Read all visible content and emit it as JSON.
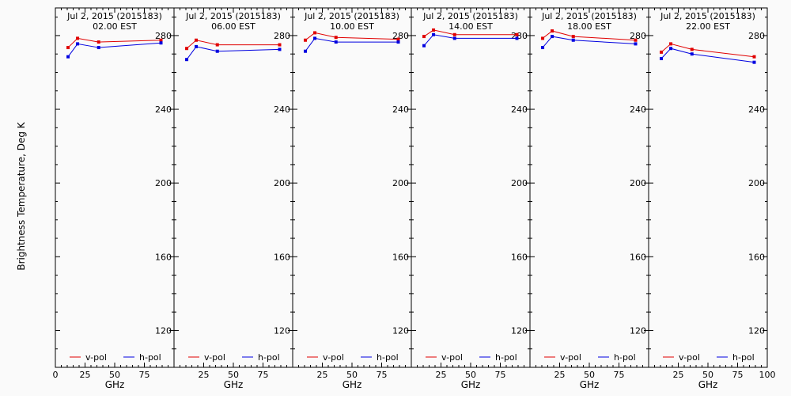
{
  "ylabel": "Brightness Temperature, Deg K",
  "xlabel": "GHz",
  "ylim": [
    100,
    295
  ],
  "xlim": [
    0,
    100
  ],
  "yticks": [
    120,
    160,
    200,
    240,
    280
  ],
  "xtick_labels": [
    "0",
    "25",
    "50",
    "75",
    "100"
  ],
  "series_colors": {
    "v-pol": "#e00000",
    "h-pol": "#0000e0"
  },
  "legend": [
    {
      "name": "v-pol",
      "color": "#e00000"
    },
    {
      "name": "h-pol",
      "color": "#0000e0"
    }
  ],
  "chart_data": [
    {
      "type": "line",
      "title": "Jul  2, 2015 (2015183)",
      "subtitle": "02.00 EST",
      "xlabel": "GHz",
      "xlim": [
        0,
        100
      ],
      "ylim": [
        100,
        295
      ],
      "x": [
        10.7,
        18.7,
        36.5,
        89.0
      ],
      "series": [
        {
          "name": "v-pol",
          "values": [
            273.5,
            278.5,
            276.5,
            277.5
          ]
        },
        {
          "name": "h-pol",
          "values": [
            268.5,
            275.5,
            273.5,
            276.0
          ]
        }
      ]
    },
    {
      "type": "line",
      "title": "Jul  2, 2015 (2015183)",
      "subtitle": "06.00 EST",
      "xlabel": "GHz",
      "xlim": [
        0,
        100
      ],
      "ylim": [
        100,
        295
      ],
      "x": [
        10.7,
        18.7,
        36.5,
        89.0
      ],
      "series": [
        {
          "name": "v-pol",
          "values": [
            273.0,
            277.5,
            275.0,
            275.0
          ]
        },
        {
          "name": "h-pol",
          "values": [
            267.0,
            274.0,
            271.5,
            272.5
          ]
        }
      ]
    },
    {
      "type": "line",
      "title": "Jul  2, 2015 (2015183)",
      "subtitle": "10.00 EST",
      "xlabel": "GHz",
      "xlim": [
        0,
        100
      ],
      "ylim": [
        100,
        295
      ],
      "x": [
        10.7,
        18.7,
        36.5,
        89.0
      ],
      "series": [
        {
          "name": "v-pol",
          "values": [
            277.5,
            281.5,
            279.0,
            278.0
          ]
        },
        {
          "name": "h-pol",
          "values": [
            271.5,
            278.5,
            276.5,
            276.5
          ]
        }
      ]
    },
    {
      "type": "line",
      "title": "Jul  2, 2015 (2015183)",
      "subtitle": "14.00 EST",
      "xlabel": "GHz",
      "xlim": [
        0,
        100
      ],
      "ylim": [
        100,
        295
      ],
      "x": [
        10.7,
        18.7,
        36.5,
        89.0
      ],
      "series": [
        {
          "name": "v-pol",
          "values": [
            279.5,
            283.0,
            280.5,
            280.5
          ]
        },
        {
          "name": "h-pol",
          "values": [
            274.5,
            280.5,
            278.5,
            278.5
          ]
        }
      ]
    },
    {
      "type": "line",
      "title": "Jul  2, 2015 (2015183)",
      "subtitle": "18.00 EST",
      "xlabel": "GHz",
      "xlim": [
        0,
        100
      ],
      "ylim": [
        100,
        295
      ],
      "x": [
        10.7,
        18.7,
        36.5,
        89.0
      ],
      "series": [
        {
          "name": "v-pol",
          "values": [
            278.5,
            282.5,
            279.5,
            277.5
          ]
        },
        {
          "name": "h-pol",
          "values": [
            273.5,
            279.5,
            277.5,
            275.5
          ]
        }
      ]
    },
    {
      "type": "line",
      "title": "Jul  2, 2015 (2015183)",
      "subtitle": "22.00 EST",
      "xlabel": "GHz",
      "xlim": [
        0,
        100
      ],
      "ylim": [
        100,
        295
      ],
      "x": [
        10.7,
        18.7,
        36.5,
        89.0
      ],
      "series": [
        {
          "name": "v-pol",
          "values": [
            271.0,
            275.5,
            272.5,
            268.5
          ]
        },
        {
          "name": "h-pol",
          "values": [
            267.5,
            273.0,
            270.0,
            265.5
          ]
        }
      ]
    }
  ]
}
